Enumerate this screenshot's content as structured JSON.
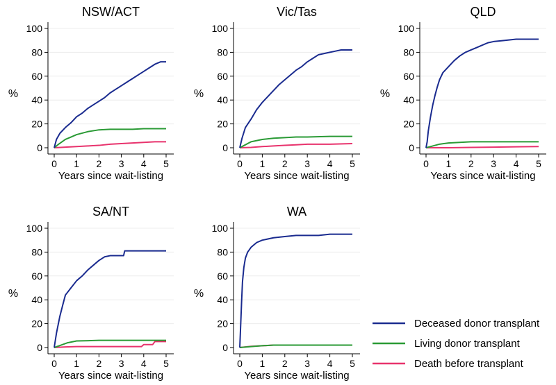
{
  "chart_data": [
    {
      "type": "line",
      "title": "NSW/ACT",
      "xlabel": "Years since wait-listing",
      "ylabel": "%",
      "xlim": [
        0,
        5
      ],
      "ylim": [
        0,
        100
      ],
      "xticks": [
        0,
        1,
        2,
        3,
        4,
        5
      ],
      "yticks": [
        0,
        20,
        40,
        60,
        80,
        100
      ],
      "grid": true,
      "series": [
        {
          "name": "Deceased donor transplant",
          "x": [
            0,
            0.1,
            0.25,
            0.5,
            0.75,
            1,
            1.25,
            1.5,
            1.75,
            2,
            2.25,
            2.5,
            2.75,
            3,
            3.25,
            3.5,
            3.75,
            4,
            4.25,
            4.5,
            4.75,
            5
          ],
          "y": [
            0,
            7,
            12,
            17,
            21,
            26,
            29,
            33,
            36,
            39,
            42,
            46,
            49,
            52,
            55,
            58,
            61,
            64,
            67,
            70,
            72,
            72
          ]
        },
        {
          "name": "Living donor transplant",
          "x": [
            0,
            0.2,
            0.5,
            0.75,
            1,
            1.5,
            2,
            2.5,
            3,
            3.5,
            4,
            4.5,
            5
          ],
          "y": [
            0,
            3,
            7,
            9,
            11,
            13.5,
            15,
            15.5,
            15.5,
            15.5,
            16,
            16,
            16
          ]
        },
        {
          "name": "Death before transplant",
          "x": [
            0,
            0.5,
            1,
            1.5,
            2,
            2.5,
            3,
            3.5,
            4,
            4.5,
            5
          ],
          "y": [
            0,
            0.5,
            1,
            1.5,
            2,
            3,
            3.5,
            4,
            4.5,
            5,
            5
          ]
        }
      ]
    },
    {
      "type": "line",
      "title": "Vic/Tas",
      "xlabel": "Years since wait-listing",
      "ylabel": "%",
      "xlim": [
        0,
        5
      ],
      "ylim": [
        0,
        100
      ],
      "xticks": [
        0,
        1,
        2,
        3,
        4,
        5
      ],
      "yticks": [
        0,
        20,
        40,
        60,
        80,
        100
      ],
      "grid": true,
      "series": [
        {
          "name": "Deceased donor transplant",
          "x": [
            0,
            0.1,
            0.25,
            0.5,
            0.75,
            1,
            1.25,
            1.5,
            1.75,
            2,
            2.25,
            2.5,
            2.75,
            3,
            3.25,
            3.5,
            3.75,
            4,
            4.25,
            4.5,
            4.75,
            5
          ],
          "y": [
            0,
            8,
            17,
            24,
            32,
            38,
            43,
            48,
            53,
            57,
            61,
            65,
            68,
            72,
            75,
            78,
            79,
            80,
            81,
            82,
            82,
            82
          ]
        },
        {
          "name": "Living donor transplant",
          "x": [
            0,
            0.2,
            0.5,
            1,
            1.5,
            2,
            2.5,
            3,
            4,
            5
          ],
          "y": [
            0,
            2,
            5,
            7,
            8,
            8.5,
            9,
            9,
            9.5,
            9.5
          ]
        },
        {
          "name": "Death before transplant",
          "x": [
            0,
            0.5,
            1,
            1.5,
            2,
            2.5,
            3,
            4,
            5
          ],
          "y": [
            0,
            0.3,
            1,
            1.5,
            2,
            2.5,
            3,
            3,
            3.5
          ]
        }
      ]
    },
    {
      "type": "line",
      "title": "QLD",
      "xlabel": "Years since wait-listing",
      "ylabel": "%",
      "xlim": [
        0,
        5
      ],
      "ylim": [
        0,
        100
      ],
      "xticks": [
        0,
        1,
        2,
        3,
        4,
        5
      ],
      "yticks": [
        0,
        20,
        40,
        60,
        80,
        100
      ],
      "grid": true,
      "series": [
        {
          "name": "Deceased donor transplant",
          "x": [
            0,
            0.05,
            0.1,
            0.2,
            0.3,
            0.4,
            0.5,
            0.6,
            0.75,
            1,
            1.25,
            1.5,
            1.75,
            2,
            2.25,
            2.5,
            2.75,
            3,
            3.5,
            4,
            4.5,
            5
          ],
          "y": [
            0,
            5,
            14,
            26,
            36,
            44,
            51,
            57,
            63,
            68,
            73,
            77,
            80,
            82,
            84,
            86,
            88,
            89,
            90,
            91,
            91,
            91
          ]
        },
        {
          "name": "Living donor transplant",
          "x": [
            0,
            0.3,
            0.6,
            1,
            1.5,
            2,
            3,
            4,
            5
          ],
          "y": [
            0,
            1.5,
            3,
            4,
            4.5,
            5,
            5,
            5,
            5
          ]
        },
        {
          "name": "Death before transplant",
          "x": [
            0,
            1,
            2,
            3,
            4,
            5
          ],
          "y": [
            0,
            0,
            0.3,
            0.5,
            0.8,
            1
          ]
        }
      ]
    },
    {
      "type": "line",
      "title": "SA/NT",
      "xlabel": "Years since wait-listing",
      "ylabel": "%",
      "xlim": [
        0,
        5
      ],
      "ylim": [
        0,
        100
      ],
      "xticks": [
        0,
        1,
        2,
        3,
        4,
        5
      ],
      "yticks": [
        0,
        20,
        40,
        60,
        80,
        100
      ],
      "grid": true,
      "series": [
        {
          "name": "Deceased donor transplant",
          "x": [
            0,
            0.1,
            0.25,
            0.4,
            0.5,
            0.75,
            1,
            1.25,
            1.5,
            1.75,
            2,
            2.25,
            2.5,
            2.75,
            3.1,
            3.15,
            3.5,
            4,
            5
          ],
          "y": [
            0,
            12,
            26,
            37,
            44,
            50,
            56,
            60,
            65,
            69,
            73,
            76,
            77,
            77,
            77,
            81,
            81,
            81,
            81
          ]
        },
        {
          "name": "Living donor transplant",
          "x": [
            0,
            0.3,
            0.6,
            1,
            2,
            3,
            4,
            5
          ],
          "y": [
            0,
            2,
            4,
            5.5,
            6,
            6,
            6,
            6
          ]
        },
        {
          "name": "Death before transplant",
          "x": [
            0,
            0.5,
            1,
            2,
            3,
            3.9,
            4,
            4.4,
            4.5,
            5
          ],
          "y": [
            0,
            0.5,
            0.8,
            0.8,
            0.8,
            0.8,
            2.5,
            2.5,
            5,
            5
          ]
        }
      ]
    },
    {
      "type": "line",
      "title": "WA",
      "xlabel": "Years since wait-listing",
      "ylabel": "%",
      "xlim": [
        0,
        5
      ],
      "ylim": [
        0,
        100
      ],
      "xticks": [
        0,
        1,
        2,
        3,
        4,
        5
      ],
      "yticks": [
        0,
        20,
        40,
        60,
        80,
        100
      ],
      "grid": true,
      "series": [
        {
          "name": "Deceased donor transplant",
          "x": [
            0,
            0.03,
            0.08,
            0.12,
            0.18,
            0.25,
            0.35,
            0.5,
            0.75,
            1,
            1.5,
            2,
            2.5,
            3,
            3.5,
            4,
            4.5,
            5
          ],
          "y": [
            0,
            14,
            38,
            55,
            67,
            75,
            80,
            84,
            88,
            90,
            92,
            93,
            94,
            94,
            94,
            95,
            95,
            95
          ]
        },
        {
          "name": "Living donor transplant",
          "x": [
            0,
            0.5,
            1,
            1.5,
            2,
            3,
            4,
            5
          ],
          "y": [
            0,
            0.8,
            1.5,
            2,
            2,
            2,
            2,
            2
          ]
        },
        {
          "name": "Death before transplant",
          "x": [
            0,
            0.5,
            1,
            1.5,
            2,
            3,
            4,
            5
          ],
          "y": [
            0,
            1,
            1.5,
            2,
            2,
            2,
            2,
            2
          ]
        }
      ]
    }
  ],
  "legend": {
    "placement": "bottom-right",
    "items": [
      {
        "label": "Deceased donor transplant",
        "color": "#1a2b8f"
      },
      {
        "label": "Living donor transplant",
        "color": "#2a9a35"
      },
      {
        "label": "Death before transplant",
        "color": "#e8336d"
      }
    ]
  },
  "colors": {
    "deceased": "#1a2b8f",
    "living": "#2a9a35",
    "death": "#e8336d",
    "grid": "#ececec",
    "axis": "#000000"
  }
}
